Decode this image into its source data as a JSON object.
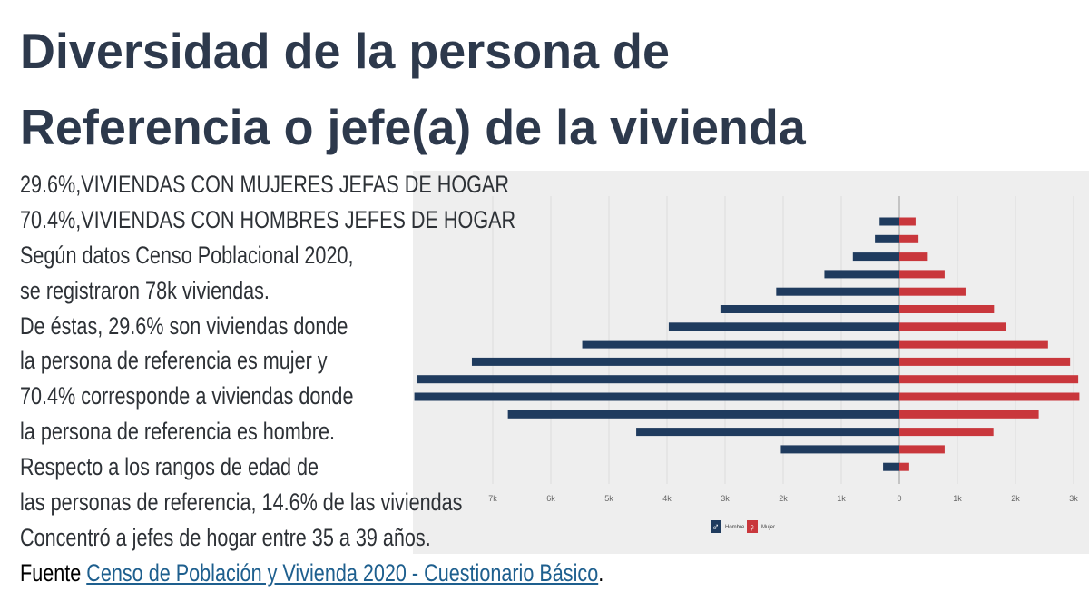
{
  "title": {
    "line1": "Diversidad de la persona de",
    "line2": "Referencia o jefe(a) de la vivienda"
  },
  "body_lines": [
    "29.6%,VIVIENDAS CON MUJERES JEFAS DE HOGAR",
    "70.4%,VIVIENDAS CON HOMBRES JEFES DE HOGAR",
    "Según datos Censo Poblacional 2020,",
    "se registraron 78k viviendas.",
    "De éstas, 29.6% son viviendas donde",
    "la persona de referencia es mujer y",
    "70.4% corresponde a viviendas donde",
    "la persona de referencia es hombre.",
    "Respecto a los rangos de edad de",
    "las personas de referencia, 14.6% de las viviendas",
    "Concentró a jefes de hogar entre 35 a 39 años."
  ],
  "source": {
    "prefix": "Fuente ",
    "link_text": "Censo de Población y Vivienda 2020 - Cuestionario Básico",
    "suffix": "."
  },
  "chart_data": {
    "type": "bar",
    "orientation": "horizontal-pyramid",
    "x_tick_labels": [
      "7k",
      "6k",
      "5k",
      "4k",
      "3k",
      "2k",
      "1k",
      "0",
      "1k",
      "2k",
      "3k"
    ],
    "xlim": [
      -7,
      3.2
    ],
    "x_unit": "thousands of households",
    "grid": true,
    "legend_position": "bottom",
    "series": [
      {
        "name": "Hombre",
        "color": "#1f3b5e",
        "icon": "male-symbol-icon",
        "values": [
          0.34,
          0.42,
          0.8,
          1.29,
          2.12,
          3.08,
          3.97,
          5.46,
          7.36,
          8.3,
          8.35,
          6.74,
          4.53,
          2.04,
          0.28
        ]
      },
      {
        "name": "Mujer",
        "color": "#c9373c",
        "icon": "female-symbol-icon",
        "values": [
          0.28,
          0.33,
          0.49,
          0.78,
          1.14,
          1.63,
          1.83,
          2.56,
          2.94,
          3.08,
          3.1,
          2.4,
          1.62,
          0.78,
          0.17
        ]
      }
    ]
  }
}
